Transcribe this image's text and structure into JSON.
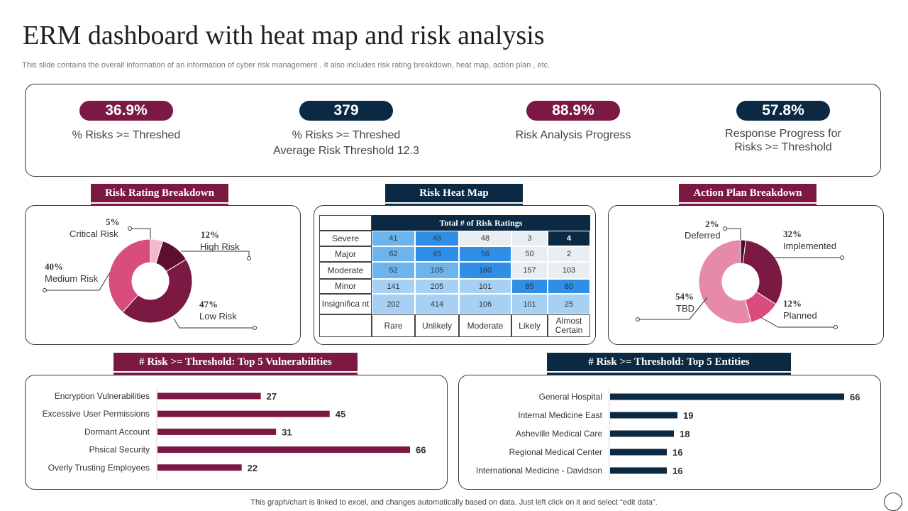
{
  "title": "ERM dashboard with heat map and risk analysis",
  "subtitle": "This slide contains the overall information of an information of cyber risk management . It also includes risk rating breakdown, heat map, action plan , etc.",
  "colors": {
    "maroon": "#7b1942",
    "navy": "#0b2942",
    "pink": "#d84d7e"
  },
  "kpis": [
    {
      "value": "36.9%",
      "label_line1": "% Risks >= Threshed",
      "label_line2": "",
      "color": "#7b1942"
    },
    {
      "value": "379",
      "label_line1": "% Risks >= Threshed",
      "label_line2": "Average Risk Threshold  12.3",
      "color": "#0b2942"
    },
    {
      "value": "88.9%",
      "label_line1": "Risk Analysis Progress",
      "label_line2": "",
      "color": "#7b1942"
    },
    {
      "value": "57.8%",
      "label_line1": "Response Progress for",
      "label_line2": "Risks >= Threshold",
      "color": "#0b2942"
    }
  ],
  "sections": {
    "risk_rating": "Risk Rating Breakdown",
    "heat_map": "Risk Heat Map",
    "action_plan": "Action Plan Breakdown",
    "vulnerabilities": "# Risk >= Threshold: Top 5 Vulnerabilities",
    "entities": "# Risk >= Threshold: Top 5 Entities"
  },
  "footer": "This graph/chart is linked to excel,  and changes automatically based on data. Just left click on it and select “edit data”.",
  "chart_data": [
    {
      "type": "pie",
      "title": "Risk Rating Breakdown",
      "categories": [
        "Critical Risk",
        "High Risk",
        "Low Risk",
        "Medium Risk"
      ],
      "values": [
        5,
        12,
        47,
        40
      ],
      "value_labels": [
        "5%",
        "12%",
        "47%",
        "40%"
      ],
      "colors": [
        "#f2b9cc",
        "#5e0f2e",
        "#7b1942",
        "#d84d7e"
      ],
      "hole": true
    },
    {
      "type": "pie",
      "title": "Action Plan Breakdown",
      "categories": [
        "Deferred",
        "Implemented",
        "Planned",
        "TBD"
      ],
      "values": [
        2,
        32,
        12,
        54
      ],
      "value_labels": [
        "2%",
        "32%",
        "12%",
        "54%"
      ],
      "colors": [
        "#4a0d25",
        "#7b1942",
        "#d84d7e",
        "#e68aab"
      ],
      "hole": true
    },
    {
      "type": "heatmap",
      "title": "Total # of Risk Ratings",
      "rows": [
        "Severe",
        "Major",
        "Moderate",
        "Minor",
        "Insignificant"
      ],
      "row_labels": [
        "Severe",
        "Major",
        "Moderate",
        "Minor",
        "Insignifica nt"
      ],
      "columns": [
        "Rare",
        "Unlikely",
        "Moderate",
        "Likely",
        "Almost Certain"
      ],
      "values": [
        [
          41,
          48,
          48,
          3,
          4
        ],
        [
          62,
          45,
          56,
          50,
          2
        ],
        [
          52,
          105,
          160,
          157,
          103
        ],
        [
          141,
          205,
          101,
          85,
          80
        ],
        [
          202,
          414,
          106,
          101,
          25
        ]
      ],
      "cell_colors": [
        [
          "#6cb4ee",
          "#2f8fe6",
          "#e9eef3",
          "#e9eef3",
          "#0b2942"
        ],
        [
          "#6cb4ee",
          "#2f8fe6",
          "#2f8fe6",
          "#e9eef3",
          "#e9eef3"
        ],
        [
          "#6cb4ee",
          "#6cb4ee",
          "#2f8fe6",
          "#e9eef3",
          "#e9eef3"
        ],
        [
          "#a6d1f4",
          "#a6d1f4",
          "#a6d1f4",
          "#2f8fe6",
          "#2f8fe6"
        ],
        [
          "#a6d1f4",
          "#a6d1f4",
          "#a6d1f4",
          "#a6d1f4",
          "#a6d1f4"
        ]
      ]
    },
    {
      "type": "bar",
      "orientation": "horizontal",
      "title": "# Risk >= Threshold: Top 5 Vulnerabilities",
      "categories": [
        "Encryption Vulnerabilities",
        "Excessive User Permissions",
        "Dormant Account",
        "Phsical Security",
        "Overly Trusting Employees"
      ],
      "values": [
        27,
        45,
        31,
        66,
        22
      ],
      "color": "#7b1942",
      "xlim": [
        0,
        66
      ]
    },
    {
      "type": "bar",
      "orientation": "horizontal",
      "title": "# Risk >= Threshold: Top 5 Entities",
      "categories": [
        "General Hospital",
        "Internal Medicine East",
        "Asheville Medical Care",
        "Regional Medical Center",
        "International Medicine - Davidson"
      ],
      "values": [
        66,
        19,
        18,
        16,
        16
      ],
      "color": "#0b2942",
      "xlim": [
        0,
        66
      ]
    }
  ]
}
